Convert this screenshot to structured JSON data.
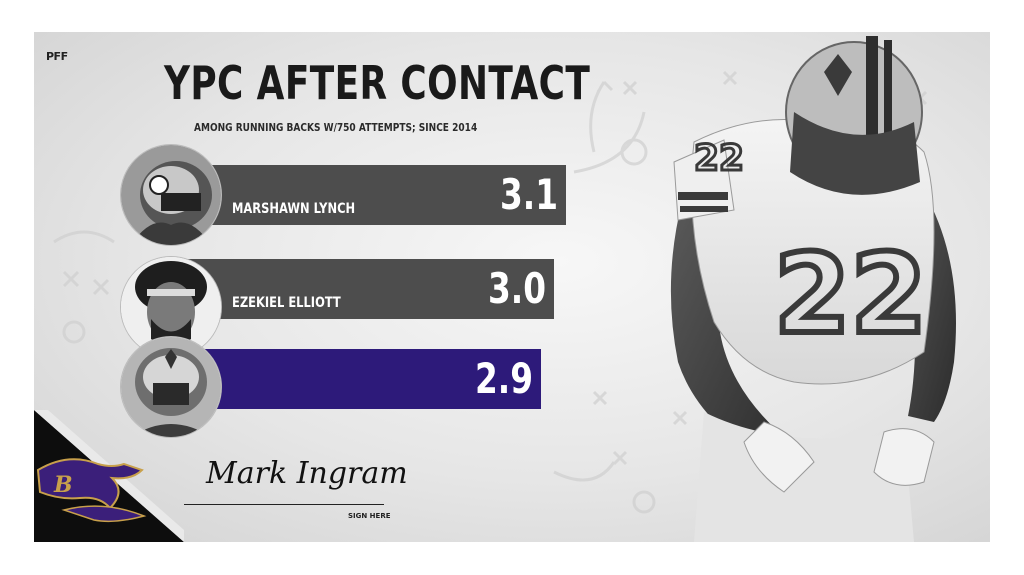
{
  "logo": "PFF",
  "header": {
    "title": "YPC AFTER CONTACT",
    "subtitle": "AMONG RUNNING BACKS W/750 ATTEMPTS; SINCE 2014"
  },
  "chart_data": {
    "type": "bar",
    "orientation": "horizontal",
    "title": "YPC AFTER CONTACT",
    "subtitle": "AMONG RUNNING BACKS W/750 ATTEMPTS; SINCE 2014",
    "categories": [
      "MARSHAWN LYNCH",
      "EZEKIEL ELLIOTT",
      ""
    ],
    "values": [
      3.1,
      3.0,
      2.9
    ],
    "value_labels": [
      "3.1",
      "3.0",
      "2.9"
    ],
    "bar_colors": [
      "#4d4d4d",
      "#4d4d4d",
      "#2d1a7a"
    ],
    "xlim": [
      0,
      3.1
    ],
    "grid": false,
    "legend": "none"
  },
  "signature": {
    "name": "Mark Ingram",
    "caption": "SIGN HERE"
  },
  "icons": {
    "team_logo": "ravens-logo-icon",
    "player": "player-photo-icon",
    "avatars": [
      "raiders-helmet-avatar-icon",
      "curly-hair-avatar-icon",
      "saints-helmet-avatar-icon"
    ]
  },
  "colors": {
    "bar_gray": "#4d4d4d",
    "bar_highlight": "#2d1a7a",
    "ravens_purple": "#3b1f7a",
    "ravens_gold": "#c8a04b"
  }
}
